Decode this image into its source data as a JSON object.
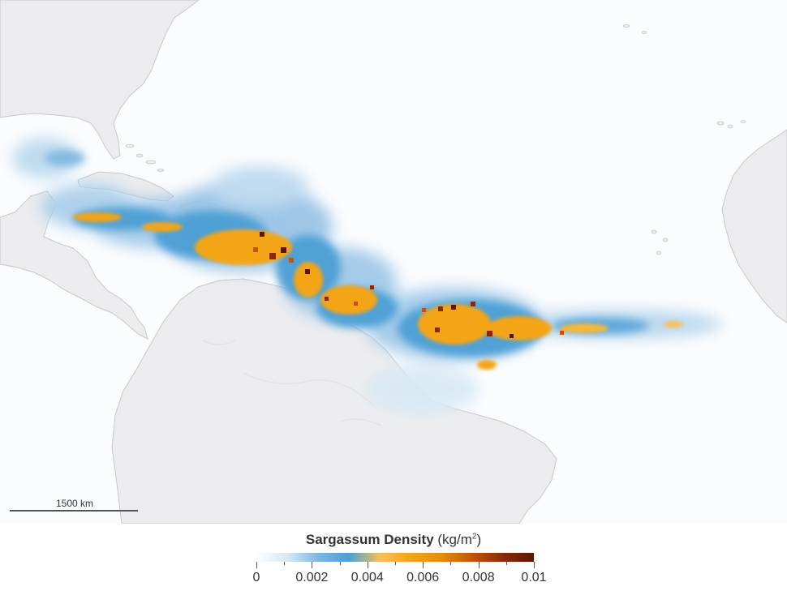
{
  "map": {
    "colors": {
      "water": "#fbfcfe",
      "land": "#ececee",
      "coast": "#c8c8cc"
    }
  },
  "scale_bar": {
    "label": "1500 km"
  },
  "legend": {
    "title_bold": "Sargassum Density",
    "title_unit": "(kg/m",
    "title_unit_sup": "2",
    "title_unit_close": ")",
    "ticks": [
      "0",
      "0.002",
      "0.004",
      "0.006",
      "0.008",
      "0.01"
    ],
    "colors": [
      "#ffffff",
      "#d6e8f4",
      "#7fb7e0",
      "#4b9fd6",
      "#f6c05a",
      "#f4a516",
      "#e58c0d",
      "#c7520a",
      "#8a2a05",
      "#5a1602"
    ]
  }
}
